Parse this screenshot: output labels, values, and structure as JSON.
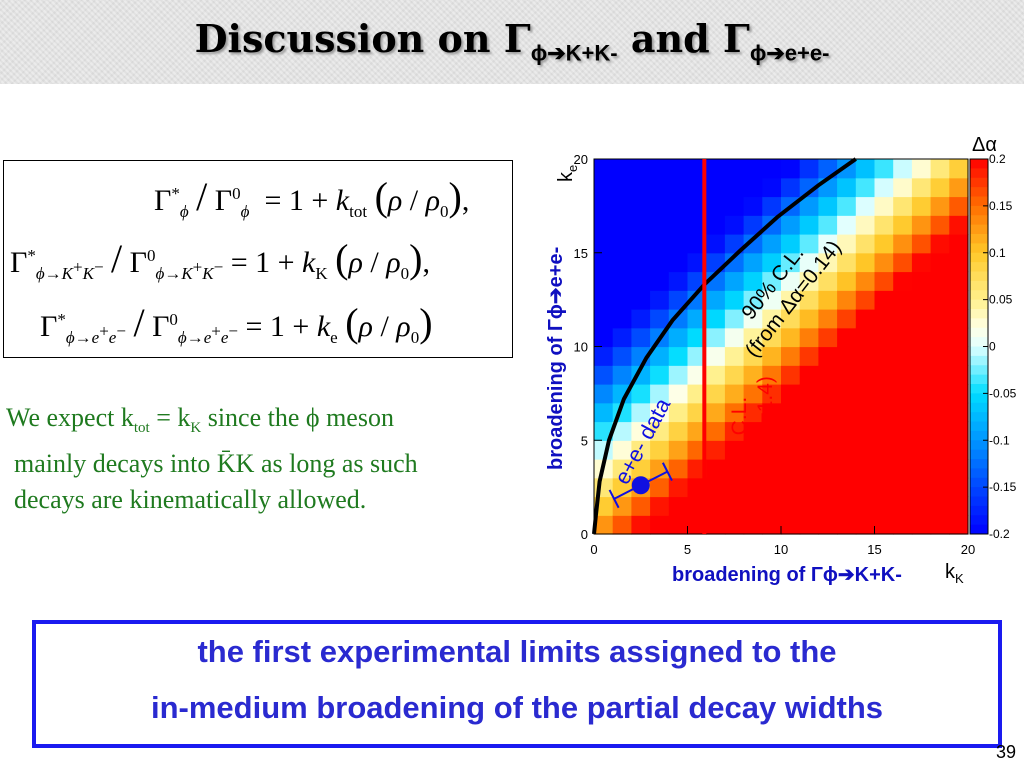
{
  "slide": {
    "title_prefix": "Discussion on Γ",
    "title_sub1": "ϕ➔K+K-",
    "title_mid": " and Γ",
    "title_sub2": "ϕ➔e+e-",
    "page_number": "39"
  },
  "formulas": {
    "row1_lhs": "Γ*ϕ / Γ0ϕ",
    "row2_lhs": "Γ*ϕ→K+K− / Γ0ϕ→K+K−",
    "row3_lhs": "Γ*ϕ→e+e− / Γ0ϕ→e+e−",
    "row1_k": "tot",
    "row2_k": "K",
    "row3_k": "e"
  },
  "text": {
    "expect_line1": "We expect k",
    "expect_sub1": "tot",
    "expect_eq": " = k",
    "expect_sub2": "K",
    "expect_rest1": "  since the ϕ meson",
    "expect_line2": "mainly decays into K̄K as long as such",
    "expect_line3": "decays are kinematically allowed."
  },
  "conclusion": {
    "line1": "the first experimental limits assigned to the",
    "line2": "in-medium broadening of the partial decay widths"
  },
  "chart_data": {
    "type": "heatmap",
    "xlabel": "kK",
    "ylabel": "ke",
    "x_axis_title": "broadening of Γϕ➔K+K-",
    "y_axis_title": "broadening of Γϕ➔e+e-",
    "xlim": [
      0,
      20
    ],
    "ylim": [
      0,
      20
    ],
    "x_ticks": [
      "0",
      "5",
      "10",
      "15",
      "20"
    ],
    "y_ticks": [
      "0",
      "5",
      "10",
      "15",
      "20"
    ],
    "z_label": "Δα",
    "zlim": [
      -0.2,
      0.2
    ],
    "z_ticks": [
      "0.2",
      "0.15",
      "0.1",
      "0.05",
      "0",
      "-0.05",
      "-0.1",
      "-0.15",
      "-0.2"
    ],
    "colors": {
      "low": "#0000ff",
      "mid": "#ffffff",
      "high": "#ff0000",
      "kk_limit_line": "#ff0000",
      "ee_limit_curve": "#000000",
      "data_point": "#1010e0"
    },
    "kk_limit": {
      "x": 5.9,
      "label1": "90% C.L.",
      "label2": "(from kK=1.4)"
    },
    "ee_limit": {
      "label1": "90% C.L.",
      "label2": "(from Δα=0.14)",
      "curve": [
        [
          0.0,
          0.0
        ],
        [
          0.1,
          1.0
        ],
        [
          0.3,
          2.8
        ],
        [
          0.8,
          5.0
        ],
        [
          1.6,
          7.2
        ],
        [
          2.8,
          9.4
        ],
        [
          4.2,
          11.4
        ],
        [
          5.9,
          13.3
        ],
        [
          7.8,
          15.1
        ],
        [
          9.8,
          16.9
        ],
        [
          12.0,
          18.6
        ],
        [
          14.0,
          20.0
        ]
      ]
    },
    "data_point": {
      "x": 2.5,
      "y": 2.6,
      "x_err": 1.6,
      "label": "e+e- data"
    }
  }
}
